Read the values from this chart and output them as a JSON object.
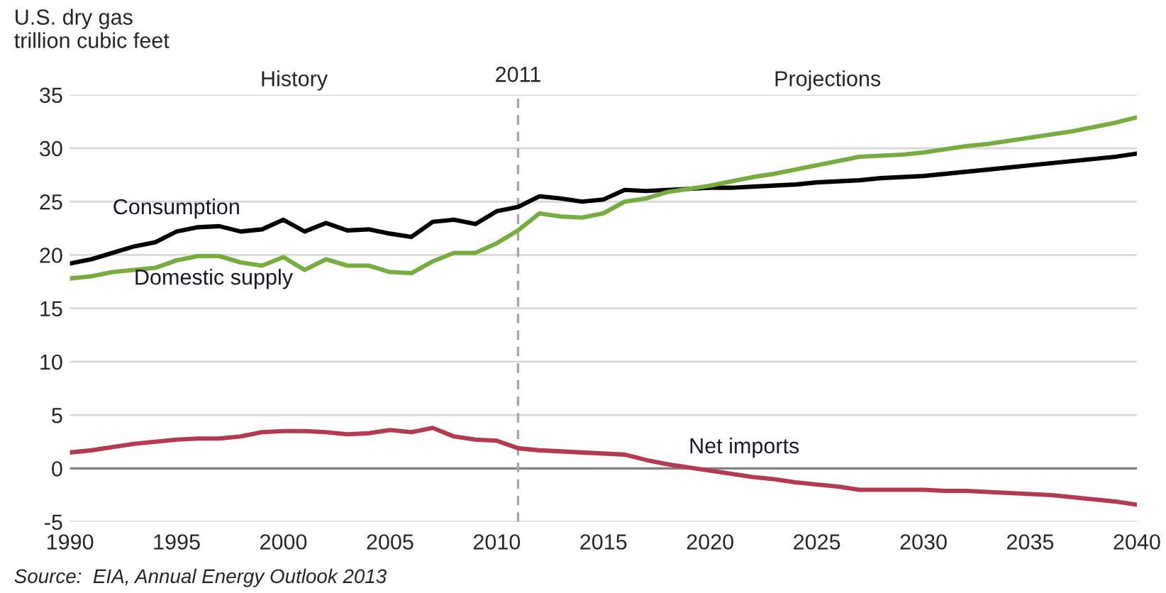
{
  "chart_data": {
    "type": "line",
    "ylabel": "U.S. dry gas\ntrillion cubic feet",
    "x": [
      1990,
      1991,
      1992,
      1993,
      1994,
      1995,
      1996,
      1997,
      1998,
      1999,
      2000,
      2001,
      2002,
      2003,
      2004,
      2005,
      2006,
      2007,
      2008,
      2009,
      2010,
      2011,
      2012,
      2013,
      2014,
      2015,
      2016,
      2017,
      2018,
      2019,
      2020,
      2021,
      2022,
      2023,
      2024,
      2025,
      2026,
      2027,
      2028,
      2029,
      2030,
      2031,
      2032,
      2033,
      2034,
      2035,
      2036,
      2037,
      2038,
      2039,
      2040
    ],
    "series": [
      {
        "name": "Consumption",
        "color": "#000000",
        "values": [
          19.2,
          19.6,
          20.2,
          20.8,
          21.2,
          22.2,
          22.6,
          22.7,
          22.2,
          22.4,
          23.3,
          22.2,
          23.0,
          22.3,
          22.4,
          22.0,
          21.7,
          23.1,
          23.3,
          22.9,
          24.1,
          24.5,
          25.5,
          25.3,
          25.0,
          25.2,
          26.1,
          26.0,
          26.1,
          26.2,
          26.3,
          26.3,
          26.4,
          26.5,
          26.6,
          26.8,
          26.9,
          27.0,
          27.2,
          27.3,
          27.4,
          27.6,
          27.8,
          28.0,
          28.2,
          28.4,
          28.6,
          28.8,
          29.0,
          29.2,
          29.5
        ]
      },
      {
        "name": "Domestic supply",
        "color": "#77ac3f",
        "values": [
          17.8,
          18.0,
          18.4,
          18.6,
          18.8,
          19.5,
          19.9,
          19.9,
          19.3,
          19.0,
          19.8,
          18.6,
          19.6,
          19.0,
          19.0,
          18.4,
          18.3,
          19.4,
          20.2,
          20.2,
          21.1,
          22.3,
          23.9,
          23.6,
          23.5,
          23.9,
          25.0,
          25.3,
          25.9,
          26.2,
          26.5,
          26.9,
          27.3,
          27.6,
          28.0,
          28.4,
          28.8,
          29.2,
          29.3,
          29.4,
          29.6,
          29.9,
          30.2,
          30.4,
          30.7,
          31.0,
          31.3,
          31.6,
          32.0,
          32.4,
          32.9
        ]
      },
      {
        "name": "Net imports",
        "color": "#b5394f",
        "values": [
          1.5,
          1.7,
          2.0,
          2.3,
          2.5,
          2.7,
          2.8,
          2.8,
          3.0,
          3.4,
          3.5,
          3.5,
          3.4,
          3.2,
          3.3,
          3.6,
          3.4,
          3.8,
          3.0,
          2.7,
          2.6,
          1.9,
          1.7,
          1.6,
          1.5,
          1.4,
          1.3,
          0.8,
          0.4,
          0.1,
          -0.2,
          -0.5,
          -0.8,
          -1.0,
          -1.3,
          -1.5,
          -1.7,
          -2.0,
          -2.0,
          -2.0,
          -2.0,
          -2.1,
          -2.1,
          -2.2,
          -2.3,
          -2.4,
          -2.5,
          -2.7,
          -2.9,
          -3.1,
          -3.4
        ]
      }
    ],
    "xlim": [
      1990,
      2040
    ],
    "xticks": [
      1990,
      1995,
      2000,
      2005,
      2010,
      2015,
      2020,
      2025,
      2030,
      2035,
      2040
    ],
    "ylim": [
      -5,
      35
    ],
    "yticks": [
      -5,
      0,
      5,
      10,
      15,
      20,
      25,
      30,
      35
    ],
    "grid": "y",
    "marker": "none",
    "line_style": "solid",
    "ref_lines": [
      {
        "axis": "y",
        "value": 0,
        "color": "#808080",
        "line_style": "solid"
      },
      {
        "axis": "x",
        "value": 2011,
        "label": "2011",
        "color": "#a6a6a6",
        "line_style": "dashed"
      }
    ],
    "annotations": [
      "History",
      "Projections",
      "Source:  EIA, Annual Energy Outlook 2013"
    ]
  }
}
